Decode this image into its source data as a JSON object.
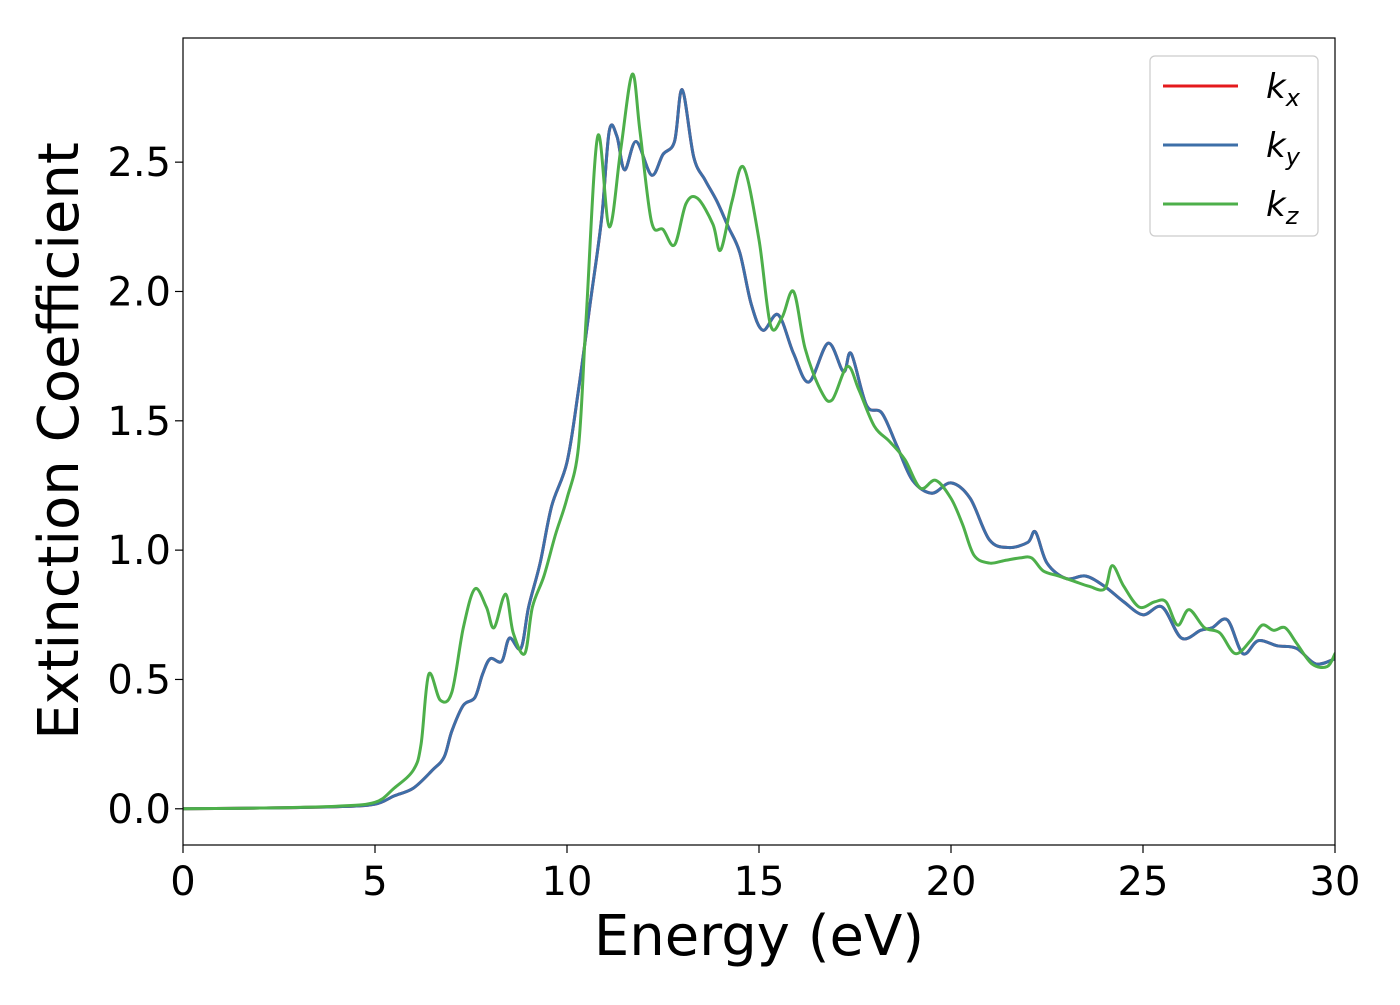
{
  "chart_data": {
    "type": "line",
    "title": "",
    "xlabel": "Energy (eV)",
    "ylabel": "Extinction Coefficient",
    "xlim": [
      0,
      30
    ],
    "ylim": [
      -0.14,
      2.98
    ],
    "xticks": [
      0,
      5,
      10,
      15,
      20,
      25,
      30
    ],
    "xtick_labels": [
      "0",
      "5",
      "10",
      "15",
      "20",
      "25",
      "30"
    ],
    "yticks": [
      0.0,
      0.5,
      1.0,
      1.5,
      2.0,
      2.5
    ],
    "ytick_labels": [
      "0.0",
      "0.5",
      "1.0",
      "1.5",
      "2.0",
      "2.5"
    ],
    "grid": false,
    "legend_position": "top-right",
    "series": [
      {
        "name": "k_x",
        "label_base": "k",
        "label_sub": "x",
        "color": "#e41a1c",
        "x": [
          0,
          2,
          4,
          5,
          5.5,
          6,
          6.5,
          6.8,
          7,
          7.3,
          7.6,
          7.8,
          8,
          8.3,
          8.5,
          8.8,
          9,
          9.3,
          9.6,
          10,
          10.3,
          10.6,
          10.9,
          11.1,
          11.3,
          11.5,
          11.8,
          12.2,
          12.5,
          12.8,
          13,
          13.3,
          13.6,
          13.9,
          14.2,
          14.5,
          14.8,
          15.1,
          15.5,
          15.9,
          16.3,
          16.8,
          17.2,
          17.4,
          17.8,
          18.2,
          18.6,
          19,
          19.5,
          20,
          20.5,
          21,
          21.5,
          22,
          22.2,
          22.5,
          23,
          23.5,
          24,
          24.5,
          25,
          25.5,
          26,
          26.5,
          26.8,
          27.2,
          27.6,
          28,
          28.5,
          29,
          29.5,
          30
        ],
        "y": [
          0.0,
          0.003,
          0.008,
          0.018,
          0.05,
          0.08,
          0.15,
          0.2,
          0.3,
          0.4,
          0.43,
          0.52,
          0.58,
          0.57,
          0.66,
          0.62,
          0.78,
          0.95,
          1.17,
          1.34,
          1.62,
          1.95,
          2.28,
          2.62,
          2.6,
          2.47,
          2.58,
          2.45,
          2.53,
          2.58,
          2.78,
          2.52,
          2.43,
          2.35,
          2.25,
          2.15,
          1.95,
          1.85,
          1.91,
          1.76,
          1.65,
          1.8,
          1.69,
          1.76,
          1.56,
          1.53,
          1.4,
          1.27,
          1.22,
          1.26,
          1.2,
          1.04,
          1.01,
          1.03,
          1.07,
          0.95,
          0.89,
          0.9,
          0.86,
          0.8,
          0.75,
          0.78,
          0.66,
          0.69,
          0.7,
          0.73,
          0.6,
          0.65,
          0.63,
          0.62,
          0.56,
          0.58
        ]
      },
      {
        "name": "k_y",
        "label_base": "k",
        "label_sub": "y",
        "color": "#3d6fa8",
        "x": [
          0,
          2,
          4,
          5,
          5.5,
          6,
          6.5,
          6.8,
          7,
          7.3,
          7.6,
          7.8,
          8,
          8.3,
          8.5,
          8.8,
          9,
          9.3,
          9.6,
          10,
          10.3,
          10.6,
          10.9,
          11.1,
          11.3,
          11.5,
          11.8,
          12.2,
          12.5,
          12.8,
          13,
          13.3,
          13.6,
          13.9,
          14.2,
          14.5,
          14.8,
          15.1,
          15.5,
          15.9,
          16.3,
          16.8,
          17.2,
          17.4,
          17.8,
          18.2,
          18.6,
          19,
          19.5,
          20,
          20.5,
          21,
          21.5,
          22,
          22.2,
          22.5,
          23,
          23.5,
          24,
          24.5,
          25,
          25.5,
          26,
          26.5,
          26.8,
          27.2,
          27.6,
          28,
          28.5,
          29,
          29.5,
          30
        ],
        "y": [
          0.0,
          0.003,
          0.008,
          0.018,
          0.05,
          0.08,
          0.15,
          0.2,
          0.3,
          0.4,
          0.43,
          0.52,
          0.58,
          0.57,
          0.66,
          0.62,
          0.78,
          0.95,
          1.17,
          1.34,
          1.62,
          1.95,
          2.28,
          2.62,
          2.6,
          2.47,
          2.58,
          2.45,
          2.53,
          2.58,
          2.78,
          2.52,
          2.43,
          2.35,
          2.25,
          2.15,
          1.95,
          1.85,
          1.91,
          1.76,
          1.65,
          1.8,
          1.69,
          1.76,
          1.56,
          1.53,
          1.4,
          1.27,
          1.22,
          1.26,
          1.2,
          1.04,
          1.01,
          1.03,
          1.07,
          0.95,
          0.89,
          0.9,
          0.86,
          0.8,
          0.75,
          0.78,
          0.66,
          0.69,
          0.7,
          0.73,
          0.6,
          0.65,
          0.63,
          0.62,
          0.56,
          0.58
        ]
      },
      {
        "name": "k_z",
        "label_base": "k",
        "label_sub": "z",
        "color": "#4daf4a",
        "x": [
          0,
          2,
          4,
          5,
          5.5,
          6,
          6.2,
          6.4,
          6.7,
          7,
          7.3,
          7.6,
          7.9,
          8.1,
          8.4,
          8.6,
          8.9,
          9.1,
          9.4,
          9.7,
          10,
          10.3,
          10.5,
          10.8,
          11.1,
          11.4,
          11.7,
          11.9,
          12.2,
          12.5,
          12.8,
          13.1,
          13.4,
          13.8,
          14,
          14.3,
          14.6,
          15,
          15.3,
          15.6,
          15.9,
          16.2,
          16.6,
          16.9,
          17.3,
          17.6,
          18,
          18.4,
          18.8,
          19.2,
          19.6,
          20,
          20.3,
          20.6,
          21,
          21.4,
          21.8,
          22.1,
          22.4,
          22.8,
          23.2,
          23.6,
          24,
          24.2,
          24.5,
          24.9,
          25.3,
          25.6,
          25.9,
          26.2,
          26.6,
          27,
          27.4,
          27.8,
          28.1,
          28.4,
          28.7,
          29,
          29.4,
          29.8,
          30
        ],
        "y": [
          0.0,
          0.003,
          0.01,
          0.025,
          0.08,
          0.15,
          0.25,
          0.52,
          0.42,
          0.45,
          0.7,
          0.85,
          0.78,
          0.7,
          0.83,
          0.68,
          0.6,
          0.78,
          0.9,
          1.06,
          1.2,
          1.4,
          1.9,
          2.6,
          2.25,
          2.55,
          2.84,
          2.62,
          2.27,
          2.24,
          2.18,
          2.34,
          2.36,
          2.26,
          2.16,
          2.35,
          2.48,
          2.2,
          1.87,
          1.9,
          2.0,
          1.78,
          1.62,
          1.58,
          1.71,
          1.62,
          1.48,
          1.42,
          1.35,
          1.24,
          1.27,
          1.2,
          1.1,
          0.98,
          0.95,
          0.96,
          0.97,
          0.97,
          0.92,
          0.9,
          0.88,
          0.86,
          0.85,
          0.94,
          0.86,
          0.78,
          0.8,
          0.8,
          0.71,
          0.77,
          0.7,
          0.68,
          0.6,
          0.65,
          0.71,
          0.69,
          0.7,
          0.64,
          0.56,
          0.55,
          0.6
        ]
      }
    ]
  }
}
